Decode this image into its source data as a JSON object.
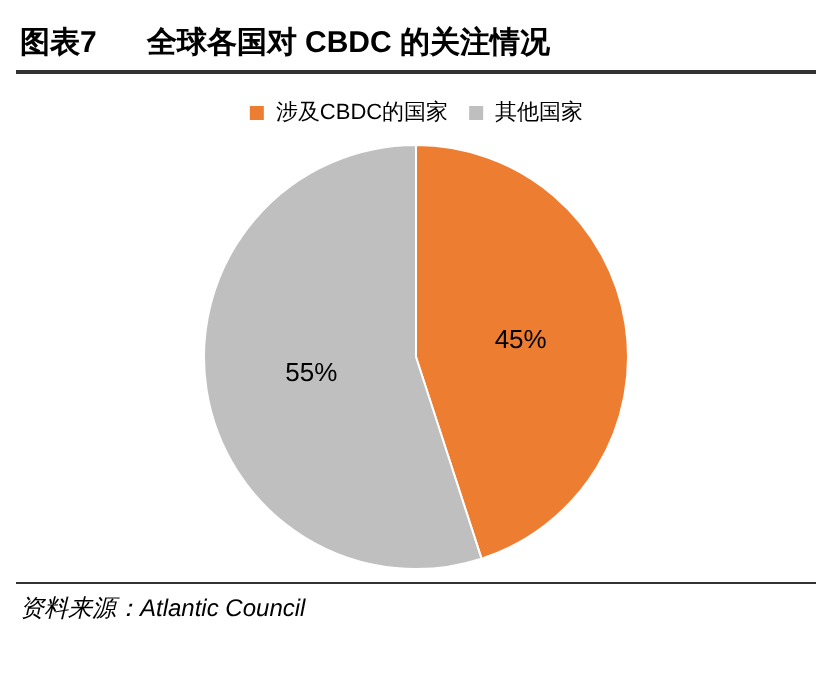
{
  "chart_data": {
    "type": "pie",
    "title": "图表7      全球各国对 CBDC 的关注情况",
    "categories": [
      "涉及CBDC的国家",
      "其他国家"
    ],
    "values": [
      45,
      55
    ],
    "colors": [
      "#ed7d31",
      "#bfbfbf"
    ],
    "value_labels": [
      "45%",
      "55%"
    ],
    "legend": "top",
    "annotations": [
      "资料来源：Atlantic Council"
    ]
  }
}
